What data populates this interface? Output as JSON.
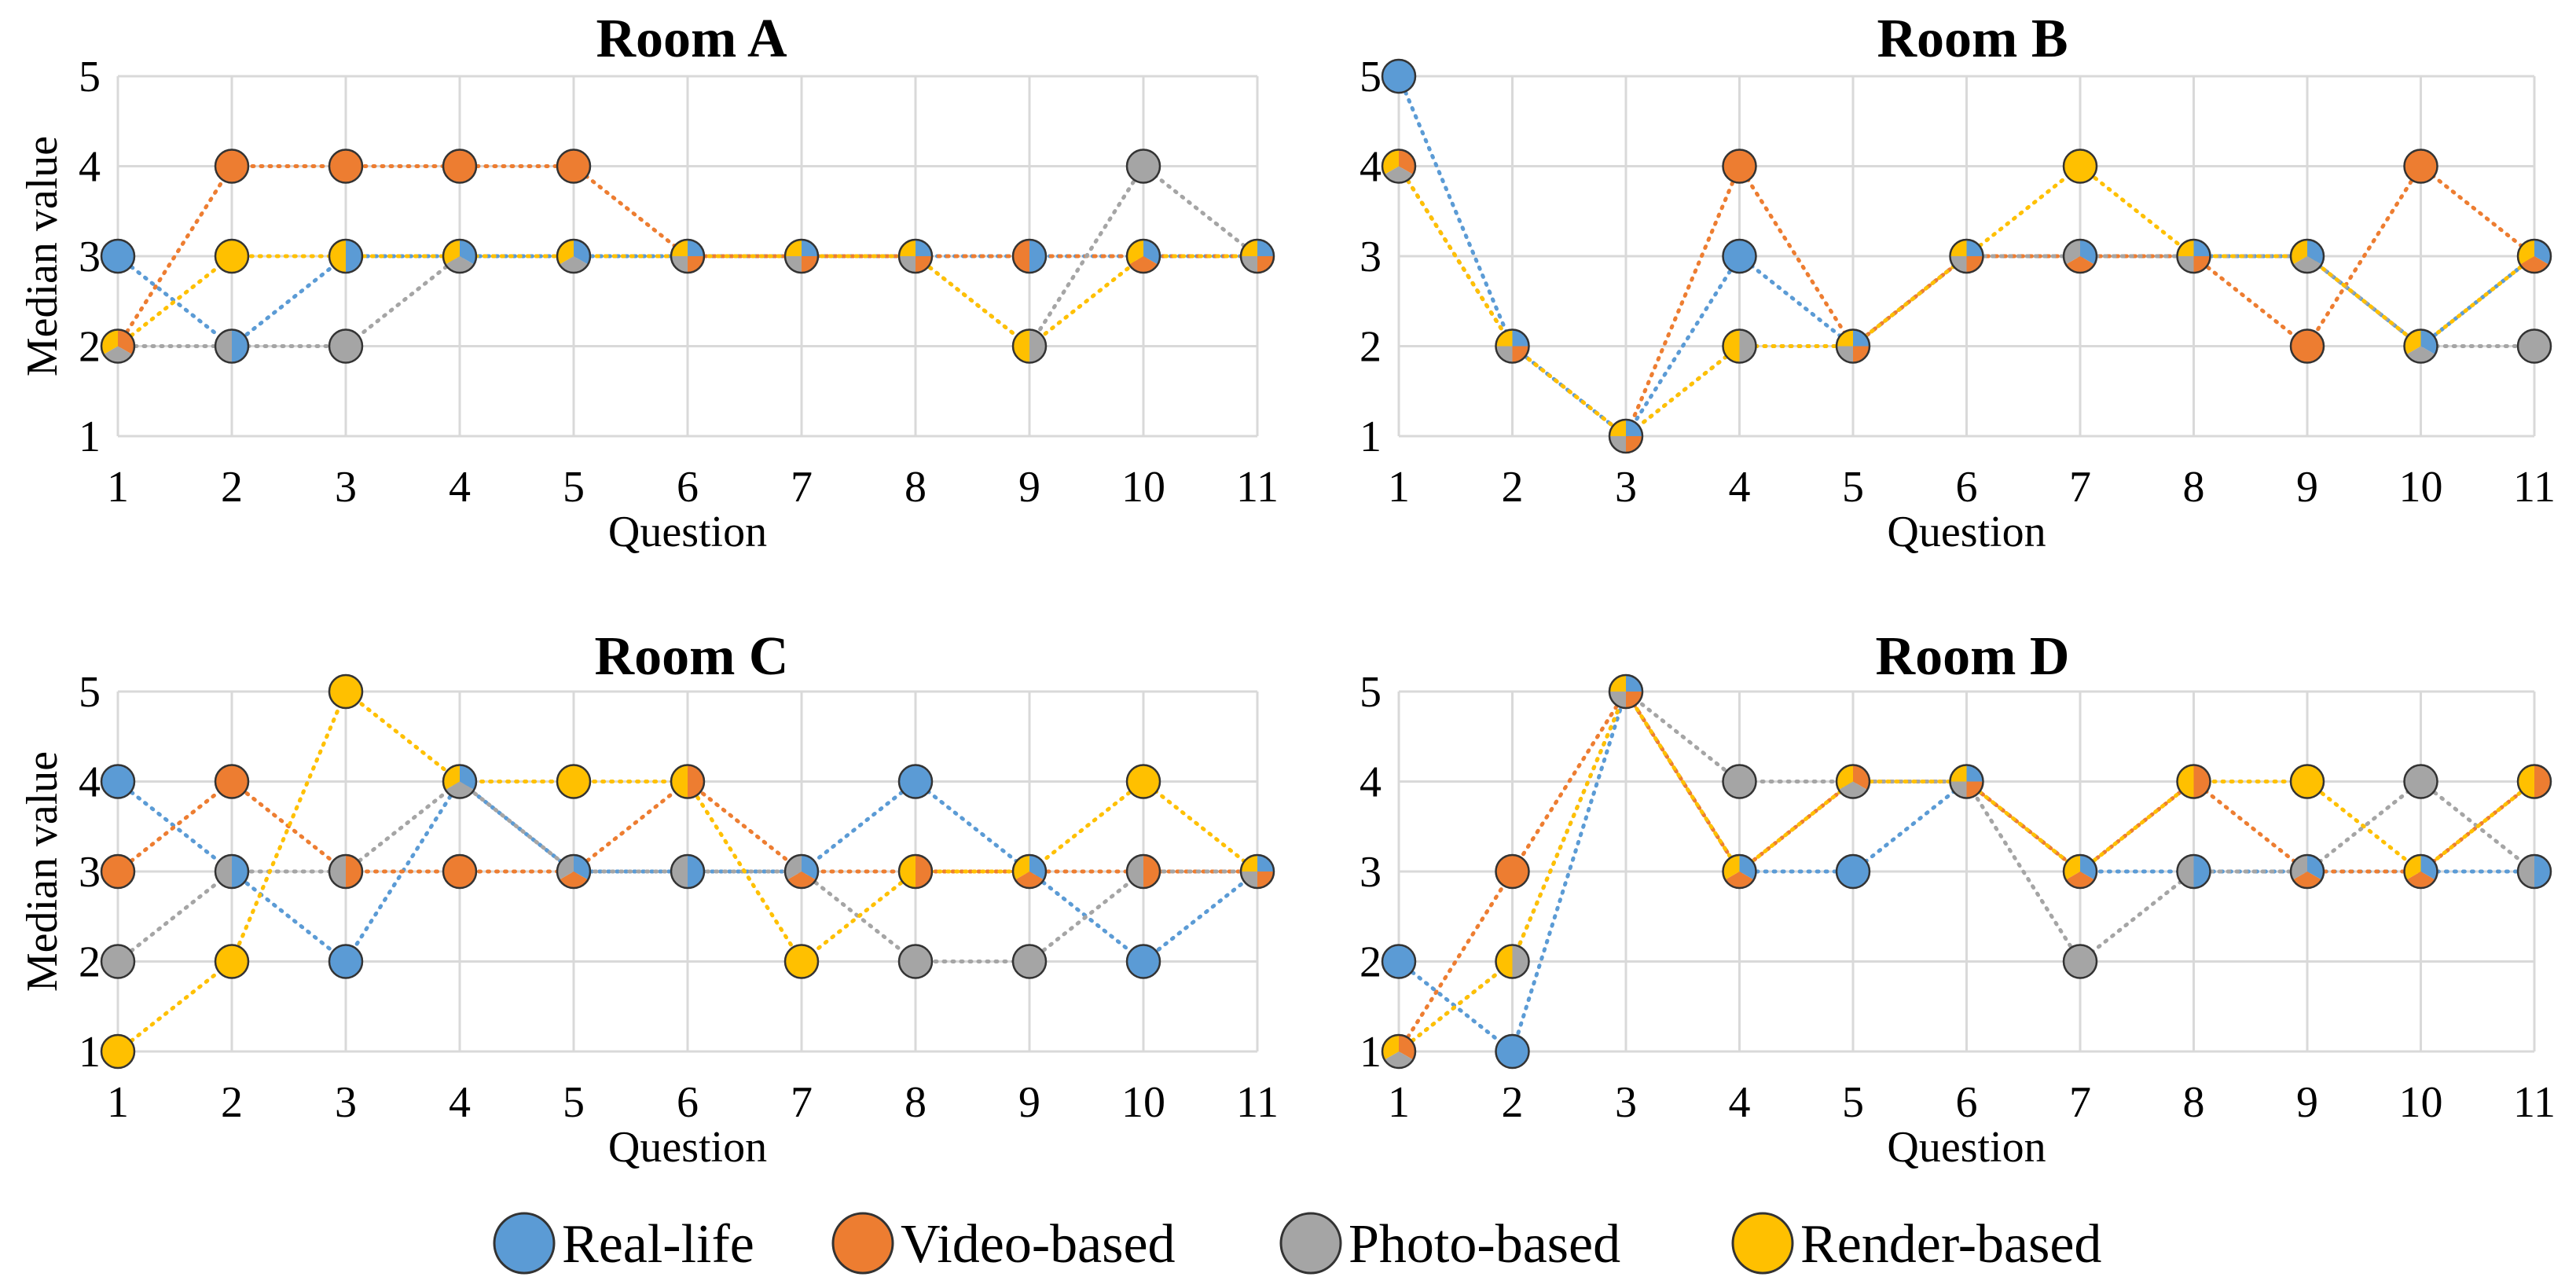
{
  "colors": {
    "Real-life": "#5b9bd5",
    "Video-based": "#ed7d31",
    "Photo-based": "#a5a5a5",
    "Render-based": "#ffc000"
  },
  "legend": {
    "items": [
      "Real-life",
      "Video-based",
      "Photo-based",
      "Render-based"
    ]
  },
  "chart_data": [
    {
      "type": "line",
      "title": "Room A",
      "xlabel": "Question",
      "ylabel": "Median value",
      "categories": [
        "1",
        "2",
        "3",
        "4",
        "5",
        "6",
        "7",
        "8",
        "9",
        "10",
        "11"
      ],
      "yticks": [
        "1",
        "2",
        "3",
        "4",
        "5"
      ],
      "ylim": [
        1,
        5
      ],
      "grid": true,
      "series": [
        {
          "name": "Real-life",
          "values": [
            3,
            2,
            3,
            3,
            3,
            3,
            3,
            3,
            3,
            3,
            3
          ]
        },
        {
          "name": "Video-based",
          "values": [
            2,
            4,
            4,
            4,
            4,
            3,
            3,
            3,
            3,
            3,
            3
          ]
        },
        {
          "name": "Photo-based",
          "values": [
            2,
            2,
            2,
            3,
            3,
            3,
            3,
            3,
            2,
            4,
            3
          ]
        },
        {
          "name": "Render-based",
          "values": [
            2,
            3,
            3,
            3,
            3,
            3,
            3,
            3,
            2,
            3,
            3
          ]
        }
      ]
    },
    {
      "type": "line",
      "title": "Room B",
      "xlabel": "Question",
      "ylabel": "",
      "categories": [
        "1",
        "2",
        "3",
        "4",
        "5",
        "6",
        "7",
        "8",
        "9",
        "10",
        "11"
      ],
      "yticks": [
        "1",
        "2",
        "3",
        "4",
        "5"
      ],
      "ylim": [
        1,
        5
      ],
      "grid": true,
      "series": [
        {
          "name": "Real-life",
          "values": [
            5,
            2,
            1,
            3,
            2,
            3,
            3,
            3,
            3,
            2,
            3
          ]
        },
        {
          "name": "Video-based",
          "values": [
            4,
            2,
            1,
            4,
            2,
            3,
            3,
            3,
            2,
            4,
            3
          ]
        },
        {
          "name": "Photo-based",
          "values": [
            4,
            2,
            1,
            2,
            2,
            3,
            3,
            3,
            3,
            2,
            2
          ]
        },
        {
          "name": "Render-based",
          "values": [
            4,
            2,
            1,
            2,
            2,
            3,
            4,
            3,
            3,
            2,
            3
          ]
        }
      ]
    },
    {
      "type": "line",
      "title": "Room C",
      "xlabel": "Question",
      "ylabel": "Median value",
      "categories": [
        "1",
        "2",
        "3",
        "4",
        "5",
        "6",
        "7",
        "8",
        "9",
        "10",
        "11"
      ],
      "yticks": [
        "1",
        "2",
        "3",
        "4",
        "5"
      ],
      "ylim": [
        1,
        5
      ],
      "grid": true,
      "series": [
        {
          "name": "Real-life",
          "values": [
            4,
            3,
            2,
            4,
            3,
            3,
            3,
            4,
            3,
            2,
            3
          ]
        },
        {
          "name": "Video-based",
          "values": [
            3,
            4,
            3,
            3,
            3,
            4,
            3,
            3,
            3,
            3,
            3
          ]
        },
        {
          "name": "Photo-based",
          "values": [
            2,
            3,
            3,
            4,
            3,
            3,
            3,
            2,
            2,
            3,
            3
          ]
        },
        {
          "name": "Render-based",
          "values": [
            1,
            2,
            5,
            4,
            4,
            4,
            2,
            3,
            3,
            4,
            3
          ]
        }
      ]
    },
    {
      "type": "line",
      "title": "Room D",
      "xlabel": "Question",
      "ylabel": "",
      "categories": [
        "1",
        "2",
        "3",
        "4",
        "5",
        "6",
        "7",
        "8",
        "9",
        "10",
        "11"
      ],
      "yticks": [
        "1",
        "2",
        "3",
        "4",
        "5"
      ],
      "ylim": [
        1,
        5
      ],
      "grid": true,
      "series": [
        {
          "name": "Real-life",
          "values": [
            2,
            1,
            5,
            3,
            3,
            4,
            3,
            3,
            3,
            3,
            3
          ]
        },
        {
          "name": "Video-based",
          "values": [
            1,
            3,
            5,
            3,
            4,
            4,
            3,
            4,
            3,
            3,
            4
          ]
        },
        {
          "name": "Photo-based",
          "values": [
            1,
            2,
            5,
            4,
            4,
            4,
            2,
            3,
            3,
            4,
            3
          ]
        },
        {
          "name": "Render-based",
          "values": [
            1,
            2,
            5,
            3,
            4,
            4,
            3,
            4,
            4,
            3,
            4
          ]
        }
      ]
    }
  ]
}
